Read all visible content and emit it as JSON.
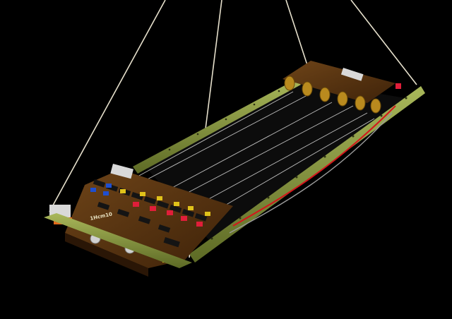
{
  "photo": {
    "board_label": "1Hcm10",
    "colors": {
      "background": "#000000",
      "rail": "#7c8a3a",
      "rail_highlight": "#a9b85a",
      "pcb": "#5a3514",
      "pcb_dark": "#3a200a",
      "chip": "#141414",
      "dip_blue": "#1f4fd0",
      "dip_yellow": "#e0c21a",
      "dip_red": "#e01e3a",
      "string": "#e6e0cc",
      "wire_red": "#d4161c",
      "metal": "#c8c8c8"
    },
    "icons": {
      "main": "printed-circuit-board-icon",
      "tuners": "tuning-peg-icon",
      "connector": "ribbon-connector-icon"
    }
  }
}
